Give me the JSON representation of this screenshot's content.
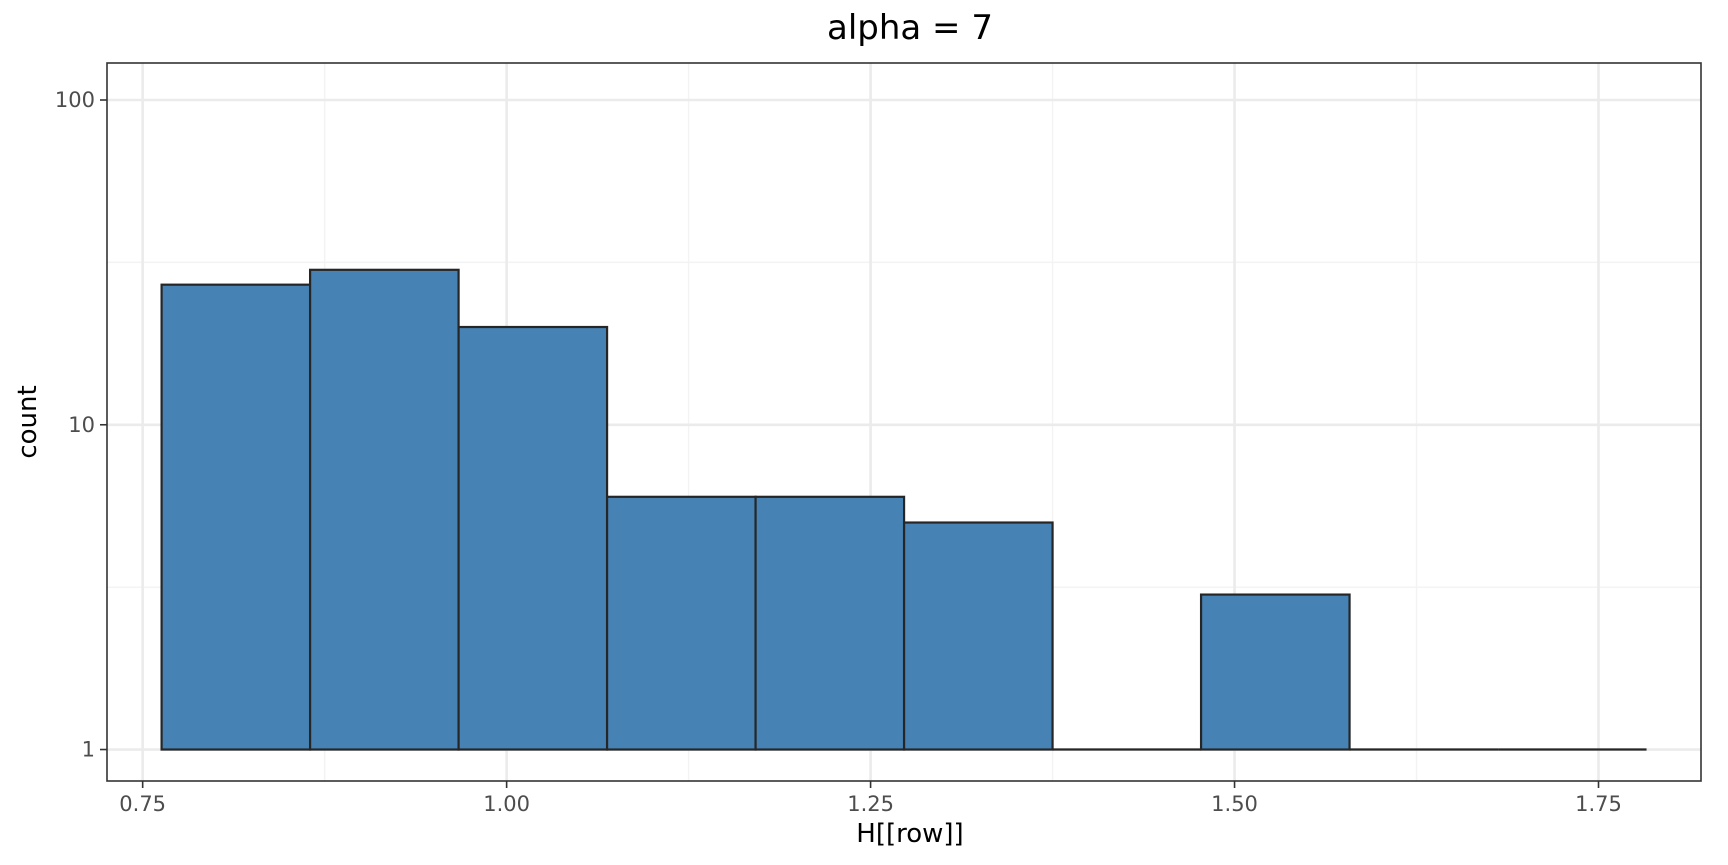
{
  "chart_data": {
    "type": "bar",
    "title": "alpha = 7",
    "xlabel": "H[[row]]",
    "ylabel": "count",
    "y_scale": "log10",
    "grid": true,
    "xlim": [
      0.7255,
      1.8204
    ],
    "ylim": [
      0.8,
      130
    ],
    "x_ticks": [
      0.75,
      1.0,
      1.25,
      1.5,
      1.75
    ],
    "x_tick_labels": [
      "0.75",
      "1.00",
      "1.25",
      "1.50",
      "1.75"
    ],
    "y_ticks": [
      1,
      10,
      100
    ],
    "y_tick_labels": [
      "1",
      "10",
      "100"
    ],
    "bar_fill": "#4682b4",
    "bar_outline": "#262626",
    "bins": [
      {
        "x0": 0.763,
        "x1": 0.865,
        "count": 27
      },
      {
        "x0": 0.865,
        "x1": 0.967,
        "count": 30
      },
      {
        "x0": 0.967,
        "x1": 1.069,
        "count": 20
      },
      {
        "x0": 1.069,
        "x1": 1.171,
        "count": 6
      },
      {
        "x0": 1.171,
        "x1": 1.273,
        "count": 6
      },
      {
        "x0": 1.273,
        "x1": 1.375,
        "count": 5
      },
      {
        "x0": 1.375,
        "x1": 1.477,
        "count": 0
      },
      {
        "x0": 1.477,
        "x1": 1.579,
        "count": 3
      },
      {
        "x0": 1.579,
        "x1": 1.681,
        "count": 0
      },
      {
        "x0": 1.681,
        "x1": 1.783,
        "count": 0
      }
    ]
  }
}
